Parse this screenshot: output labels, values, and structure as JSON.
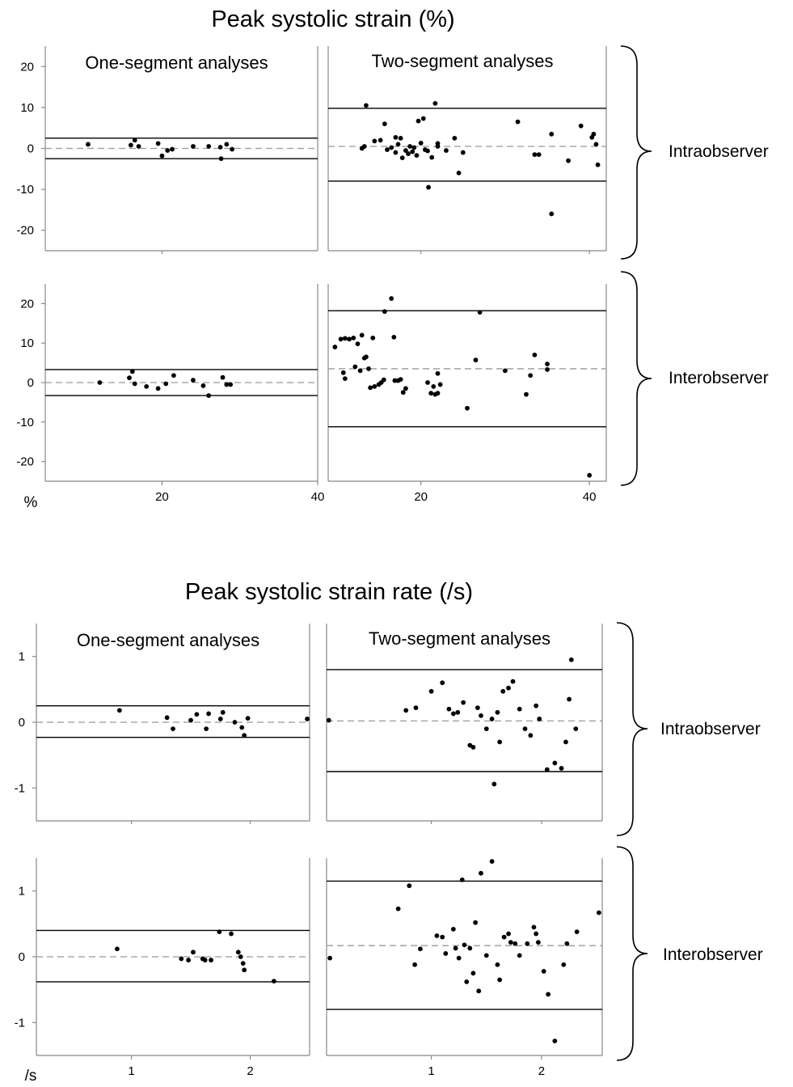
{
  "figures": [
    {
      "title": "Peak systolic strain (%)",
      "unit_label": "%",
      "groups": [
        "Intraobserver",
        "Interobserver"
      ]
    },
    {
      "title": "Peak systolic strain rate (/s)",
      "unit_label": "/s",
      "groups": [
        "Intraobserver",
        "Interobserver"
      ]
    }
  ],
  "chart_data": [
    {
      "type": "scatter",
      "title": "Peak systolic strain (%)",
      "panel": "One-segment analyses",
      "group": "Intraobserver",
      "xlim": [
        5,
        40
      ],
      "ylim": [
        -25,
        25
      ],
      "xticks": [],
      "yticks": [
        20,
        10,
        0,
        -10,
        -20
      ],
      "mean": 0,
      "loa": [
        2.5,
        -2.5
      ],
      "points": [
        [
          10.5,
          1
        ],
        [
          16,
          0.8
        ],
        [
          16.5,
          2
        ],
        [
          17,
          0.5
        ],
        [
          19.5,
          1.2
        ],
        [
          20,
          -1.8
        ],
        [
          20.7,
          -0.5
        ],
        [
          21.3,
          -0.2
        ],
        [
          24,
          0.5
        ],
        [
          26,
          0.5
        ],
        [
          27.5,
          0.3
        ],
        [
          27.6,
          -2.5
        ],
        [
          28.3,
          1
        ],
        [
          29,
          -0.2
        ]
      ]
    },
    {
      "type": "scatter",
      "title": "Peak systolic strain (%)",
      "panel": "Two-segment analyses",
      "group": "Intraobserver",
      "xlim": [
        9,
        42
      ],
      "ylim": [
        -25,
        25
      ],
      "xticks": [],
      "yticks": [],
      "mean": 0.5,
      "loa": [
        9.8,
        -8
      ],
      "points": [
        [
          13.5,
          10.5
        ],
        [
          13,
          0
        ],
        [
          13.3,
          0.5
        ],
        [
          14.5,
          1.8
        ],
        [
          15.2,
          2
        ],
        [
          15.7,
          6
        ],
        [
          16,
          -0.3
        ],
        [
          16.5,
          0.2
        ],
        [
          17,
          -1
        ],
        [
          17,
          2.7
        ],
        [
          17.3,
          1
        ],
        [
          17.6,
          2.5
        ],
        [
          17.8,
          -2.3
        ],
        [
          18.2,
          -0.5
        ],
        [
          18.5,
          -1.3
        ],
        [
          18.7,
          0.5
        ],
        [
          19,
          -0.8
        ],
        [
          19.2,
          0.2
        ],
        [
          19.5,
          -1.7
        ],
        [
          19.7,
          6.7
        ],
        [
          20,
          1.3
        ],
        [
          20.3,
          7.3
        ],
        [
          20.5,
          -0.3
        ],
        [
          20.8,
          -0.6
        ],
        [
          20.9,
          -9.5
        ],
        [
          21.3,
          -2.2
        ],
        [
          21.7,
          11
        ],
        [
          22,
          0.5
        ],
        [
          22,
          1.2
        ],
        [
          23,
          -0.5
        ],
        [
          24,
          2.5
        ],
        [
          24.5,
          -6
        ],
        [
          25,
          -1
        ],
        [
          31.5,
          6.5
        ],
        [
          33.5,
          -1.5
        ],
        [
          34,
          -1.5
        ],
        [
          35.5,
          3.5
        ],
        [
          35.5,
          -16
        ],
        [
          37.5,
          -3
        ],
        [
          39,
          5.5
        ],
        [
          40.3,
          2.7
        ],
        [
          40.5,
          3.5
        ],
        [
          40.8,
          1
        ],
        [
          41,
          -4
        ]
      ]
    },
    {
      "type": "scatter",
      "title": "Peak systolic strain (%)",
      "panel": "One-segment analyses",
      "group": "Interobserver",
      "xlim": [
        5,
        40
      ],
      "ylim": [
        -25,
        25
      ],
      "xticks": [
        20,
        40
      ],
      "yticks": [
        20,
        10,
        0,
        -10,
        -20
      ],
      "mean": 0,
      "loa": [
        3.3,
        -3.3
      ],
      "points": [
        [
          12,
          0
        ],
        [
          15.8,
          1.2
        ],
        [
          16.2,
          2.8
        ],
        [
          16.5,
          -0.3
        ],
        [
          18,
          -1
        ],
        [
          19.5,
          -1.5
        ],
        [
          20.5,
          -0.3
        ],
        [
          21.5,
          1.8
        ],
        [
          24,
          0.6
        ],
        [
          25.3,
          -0.8
        ],
        [
          26,
          -3.3
        ],
        [
          27.8,
          1.3
        ],
        [
          28.3,
          -0.5
        ],
        [
          28.8,
          -0.5
        ]
      ]
    },
    {
      "type": "scatter",
      "title": "Peak systolic strain (%)",
      "panel": "Two-segment analyses",
      "group": "Interobserver",
      "xlim": [
        9,
        42
      ],
      "ylim": [
        -25,
        25
      ],
      "xticks": [
        20,
        40
      ],
      "yticks": [],
      "mean": 3.5,
      "loa": [
        18.2,
        -11.2
      ],
      "points": [
        [
          9.8,
          9
        ],
        [
          10.5,
          11
        ],
        [
          11,
          11.2
        ],
        [
          11.5,
          11
        ],
        [
          12,
          11.3
        ],
        [
          12.5,
          9.8
        ],
        [
          13,
          12
        ],
        [
          13.3,
          6.2
        ],
        [
          13.5,
          6.5
        ],
        [
          13.8,
          3.5
        ],
        [
          10.8,
          2.5
        ],
        [
          11,
          1
        ],
        [
          12.2,
          4
        ],
        [
          12.8,
          3
        ],
        [
          14,
          -1.3
        ],
        [
          14.3,
          11.3
        ],
        [
          14.5,
          -1
        ],
        [
          15,
          -0.5
        ],
        [
          15.3,
          0
        ],
        [
          15.6,
          0.7
        ],
        [
          15.7,
          18
        ],
        [
          16.5,
          21.3
        ],
        [
          16.8,
          11.5
        ],
        [
          16.9,
          0.5
        ],
        [
          17.3,
          0.5
        ],
        [
          17.6,
          0.8
        ],
        [
          17.9,
          -2.5
        ],
        [
          18.2,
          -1.5
        ],
        [
          20.8,
          0
        ],
        [
          21.2,
          -2.7
        ],
        [
          21.5,
          -1
        ],
        [
          21.7,
          -3
        ],
        [
          22,
          2.3
        ],
        [
          22,
          -2.7
        ],
        [
          22.3,
          -0.5
        ],
        [
          25.5,
          -6.5
        ],
        [
          26.5,
          5.7
        ],
        [
          27,
          17.8
        ],
        [
          30,
          3
        ],
        [
          32.5,
          -3
        ],
        [
          33,
          1.8
        ],
        [
          33.5,
          7
        ],
        [
          35,
          3.3
        ],
        [
          35,
          4.7
        ],
        [
          40,
          -23.5
        ]
      ]
    },
    {
      "type": "scatter",
      "title": "Peak systolic strain rate (/s)",
      "panel": "One-segment analyses",
      "group": "Intraobserver",
      "xlim": [
        0.2,
        2.5
      ],
      "ylim": [
        -1.5,
        1.5
      ],
      "xticks": [],
      "yticks": [
        1,
        0,
        -1
      ],
      "mean": 0,
      "loa": [
        0.25,
        -0.23
      ],
      "points": [
        [
          0.9,
          0.18
        ],
        [
          1.3,
          0.07
        ],
        [
          1.35,
          -0.1
        ],
        [
          1.5,
          0.03
        ],
        [
          1.55,
          0.12
        ],
        [
          1.63,
          -0.1
        ],
        [
          1.65,
          0.13
        ],
        [
          1.75,
          0.05
        ],
        [
          1.77,
          0.15
        ],
        [
          1.87,
          0
        ],
        [
          1.93,
          -0.08
        ],
        [
          1.95,
          -0.2
        ],
        [
          1.98,
          0.06
        ],
        [
          2.48,
          0.05
        ]
      ]
    },
    {
      "type": "scatter",
      "title": "Peak systolic strain rate (/s)",
      "panel": "Two-segment analyses",
      "group": "Intraobserver",
      "xlim": [
        0.05,
        2.55
      ],
      "ylim": [
        -1.5,
        1.5
      ],
      "xticks": [],
      "yticks": [],
      "mean": 0.02,
      "loa": [
        0.8,
        -0.75
      ],
      "points": [
        [
          0.07,
          0.03
        ],
        [
          0.77,
          0.18
        ],
        [
          0.86,
          0.22
        ],
        [
          1.0,
          0.47
        ],
        [
          1.1,
          0.6
        ],
        [
          1.16,
          0.2
        ],
        [
          1.2,
          0.13
        ],
        [
          1.24,
          0.15
        ],
        [
          1.29,
          0.3
        ],
        [
          1.35,
          -0.35
        ],
        [
          1.38,
          -0.38
        ],
        [
          1.42,
          0.22
        ],
        [
          1.45,
          0.1
        ],
        [
          1.5,
          -0.1
        ],
        [
          1.55,
          0.05
        ],
        [
          1.6,
          0.15
        ],
        [
          1.62,
          -0.3
        ],
        [
          1.65,
          0.47
        ],
        [
          1.7,
          0.52
        ],
        [
          1.74,
          0.62
        ],
        [
          1.8,
          0.2
        ],
        [
          1.85,
          -0.1
        ],
        [
          1.9,
          -0.2
        ],
        [
          1.95,
          0.25
        ],
        [
          1.98,
          0.05
        ],
        [
          2.05,
          -0.72
        ],
        [
          2.12,
          -0.62
        ],
        [
          2.18,
          -0.7
        ],
        [
          2.22,
          -0.3
        ],
        [
          2.25,
          0.35
        ],
        [
          2.27,
          0.95
        ],
        [
          2.31,
          -0.1
        ],
        [
          1.57,
          -0.94
        ]
      ]
    },
    {
      "type": "scatter",
      "title": "Peak systolic strain rate (/s)",
      "panel": "One-segment analyses",
      "group": "Interobserver",
      "xlim": [
        0.2,
        2.5
      ],
      "ylim": [
        -1.5,
        1.5
      ],
      "xticks": [
        1,
        2
      ],
      "yticks": [
        1,
        0,
        -1
      ],
      "mean": 0,
      "loa": [
        0.4,
        -0.38
      ],
      "points": [
        [
          0.88,
          0.12
        ],
        [
          1.42,
          -0.03
        ],
        [
          1.48,
          -0.05
        ],
        [
          1.52,
          0.07
        ],
        [
          1.6,
          -0.03
        ],
        [
          1.62,
          -0.05
        ],
        [
          1.67,
          -0.05
        ],
        [
          1.74,
          0.38
        ],
        [
          1.84,
          0.35
        ],
        [
          1.9,
          0.07
        ],
        [
          1.92,
          0
        ],
        [
          1.94,
          -0.1
        ],
        [
          1.95,
          -0.2
        ],
        [
          2.2,
          -0.37
        ]
      ]
    },
    {
      "type": "scatter",
      "title": "Peak systolic strain rate (/s)",
      "panel": "Two-segment analyses",
      "group": "Interobserver",
      "xlim": [
        0.05,
        2.55
      ],
      "ylim": [
        -1.5,
        1.5
      ],
      "xticks": [
        1,
        2
      ],
      "yticks": [],
      "mean": 0.17,
      "loa": [
        1.15,
        -0.8
      ],
      "points": [
        [
          0.08,
          -0.02
        ],
        [
          0.7,
          0.73
        ],
        [
          0.8,
          1.08
        ],
        [
          0.85,
          -0.12
        ],
        [
          0.9,
          0.12
        ],
        [
          1.05,
          0.32
        ],
        [
          1.1,
          0.3
        ],
        [
          1.13,
          0.05
        ],
        [
          1.2,
          0.42
        ],
        [
          1.22,
          0.13
        ],
        [
          1.25,
          -0.02
        ],
        [
          1.28,
          1.17
        ],
        [
          1.3,
          0.18
        ],
        [
          1.35,
          0.13
        ],
        [
          1.38,
          -0.25
        ],
        [
          1.4,
          0.52
        ],
        [
          1.45,
          1.27
        ],
        [
          1.5,
          0.02
        ],
        [
          1.55,
          1.45
        ],
        [
          1.6,
          -0.12
        ],
        [
          1.62,
          -0.35
        ],
        [
          1.66,
          0.3
        ],
        [
          1.7,
          0.35
        ],
        [
          1.72,
          0.22
        ],
        [
          1.76,
          0.2
        ],
        [
          1.8,
          0.02
        ],
        [
          1.87,
          0.2
        ],
        [
          1.93,
          0.45
        ],
        [
          1.95,
          0.35
        ],
        [
          1.97,
          0.22
        ],
        [
          2.02,
          -0.22
        ],
        [
          2.06,
          -0.57
        ],
        [
          2.12,
          -1.28
        ],
        [
          2.2,
          -0.12
        ],
        [
          2.23,
          0.2
        ],
        [
          2.32,
          0.38
        ],
        [
          2.52,
          0.67
        ],
        [
          1.32,
          -0.38
        ],
        [
          1.43,
          -0.52
        ]
      ]
    }
  ]
}
